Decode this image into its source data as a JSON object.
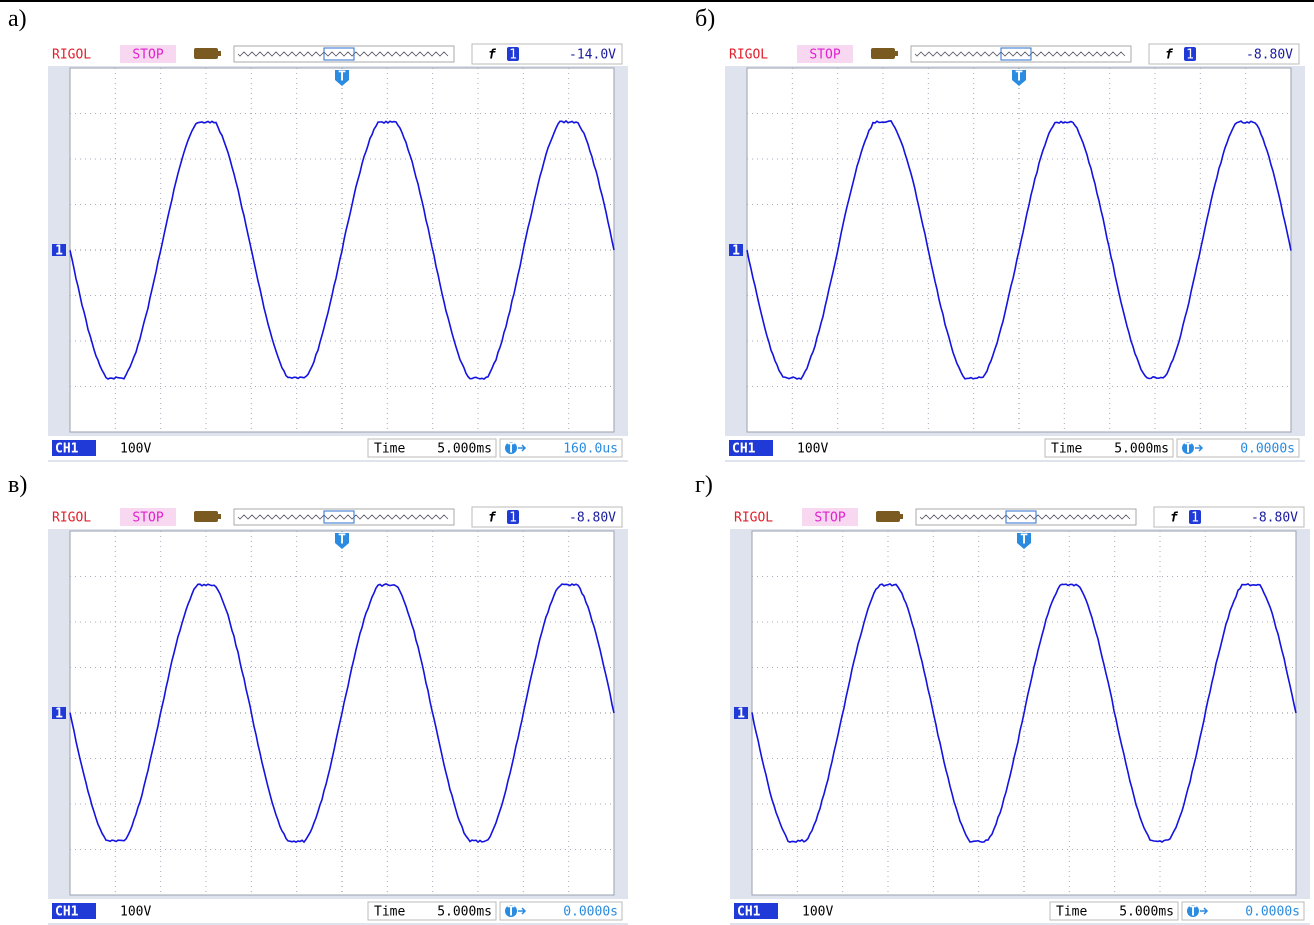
{
  "panels": [
    {
      "label": "а)",
      "brand": "RIGOL",
      "status": "STOP",
      "trigger_slope": "f",
      "channel_marker": "1",
      "trigger_level": "-14.0V",
      "trigger_marker": "T",
      "channel": "CH1",
      "volts_per_div": "100V",
      "time_label": "Time",
      "time_per_div": "5.000ms",
      "trigger_offset": "160.0us"
    },
    {
      "label": "б)",
      "brand": "RIGOL",
      "status": "STOP",
      "trigger_slope": "f",
      "channel_marker": "1",
      "trigger_level": "-8.80V",
      "trigger_marker": "T",
      "channel": "CH1",
      "volts_per_div": "100V",
      "time_label": "Time",
      "time_per_div": "5.000ms",
      "trigger_offset": "0.0000s"
    },
    {
      "label": "в)",
      "brand": "RIGOL",
      "status": "STOP",
      "trigger_slope": "f",
      "channel_marker": "1",
      "trigger_level": "-8.80V",
      "trigger_marker": "T",
      "channel": "CH1",
      "volts_per_div": "100V",
      "time_label": "Time",
      "time_per_div": "5.000ms",
      "trigger_offset": "0.0000s"
    },
    {
      "label": "г)",
      "brand": "RIGOL",
      "status": "STOP",
      "trigger_slope": "f",
      "channel_marker": "1",
      "trigger_level": "-8.80V",
      "trigger_marker": "T",
      "channel": "CH1",
      "volts_per_div": "100V",
      "time_label": "Time",
      "time_per_div": "5.000ms",
      "trigger_offset": "0.0000s"
    }
  ]
}
